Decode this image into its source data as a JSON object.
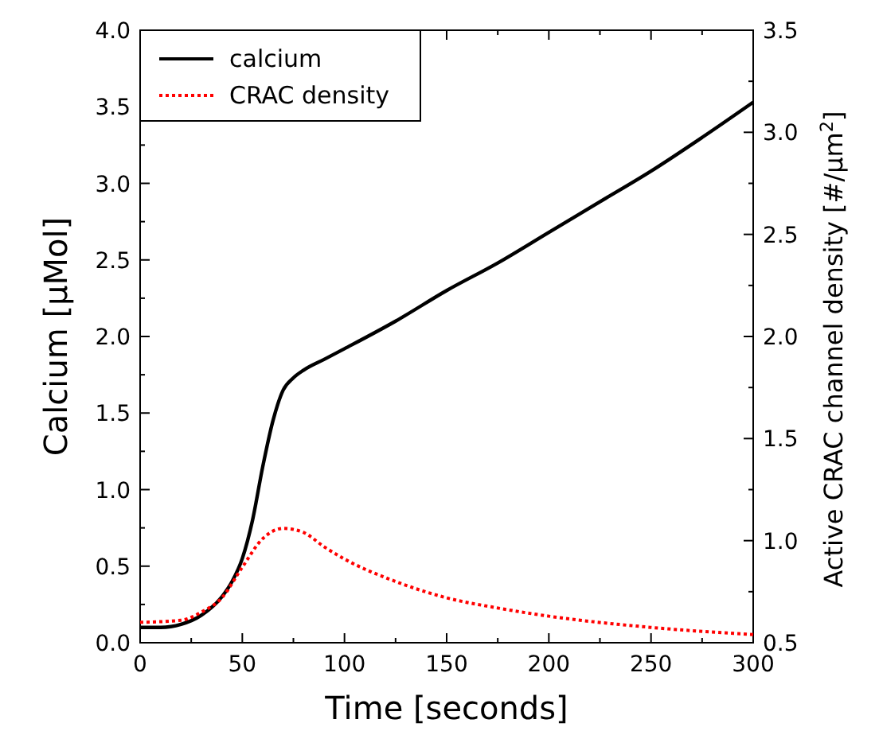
{
  "chart_data": {
    "type": "line",
    "xlabel": "Time [seconds]",
    "ylabel": "Calcium [μMol]",
    "y2label": "Active CRAC channel density [#/μm$^{2}$]",
    "xlim": [
      0,
      300
    ],
    "ylim": [
      0,
      4
    ],
    "y2lim": [
      0.5,
      3.5
    ],
    "xticks": [
      0,
      {
        "value": 25,
        "label": null
      },
      50,
      {
        "value": 75,
        "label": null
      },
      100,
      {
        "value": 125,
        "label": null
      },
      150,
      {
        "value": 175,
        "label": null
      },
      200,
      {
        "value": 225,
        "label": null
      },
      250,
      {
        "value": 275,
        "label": null
      },
      300
    ],
    "yticks": [
      {
        "value": 0,
        "label": "0.0"
      },
      {
        "value": 0.25,
        "label": null
      },
      0.5,
      {
        "value": 0.75,
        "label": null
      },
      {
        "value": 1,
        "label": "1.0"
      },
      {
        "value": 1.25,
        "label": null
      },
      1.5,
      {
        "value": 1.75,
        "label": null
      },
      {
        "value": 2,
        "label": "2.0"
      },
      {
        "value": 2.25,
        "label": null
      },
      2.5,
      {
        "value": 2.75,
        "label": null
      },
      {
        "value": 3,
        "label": "3.0"
      },
      {
        "value": 3.25,
        "label": null
      },
      3.5,
      {
        "value": 3.75,
        "label": null
      },
      {
        "value": 4,
        "label": "4.0"
      }
    ],
    "y2ticks": [
      0.5,
      {
        "value": 0.75,
        "label": null
      },
      {
        "value": 1,
        "label": "1.0"
      },
      {
        "value": 1.25,
        "label": null
      },
      1.5,
      {
        "value": 1.75,
        "label": null
      },
      {
        "value": 2,
        "label": "2.0"
      },
      {
        "value": 2.25,
        "label": null
      },
      2.5,
      {
        "value": 2.75,
        "label": null
      },
      {
        "value": 3,
        "label": "3.0"
      },
      {
        "value": 3.25,
        "label": null
      },
      3.5
    ],
    "legend": "top left",
    "grid": false,
    "series": [
      {
        "name": "calcium",
        "color": "#000000",
        "line_style": "solid",
        "x": [
          0,
          10,
          20,
          30,
          40,
          45,
          50,
          55,
          60,
          65,
          70,
          75,
          80,
          90,
          100,
          125,
          150,
          175,
          200,
          225,
          250,
          275,
          300
        ],
        "values": [
          0.1,
          0.1,
          0.12,
          0.18,
          0.3,
          0.4,
          0.55,
          0.8,
          1.15,
          1.45,
          1.65,
          1.73,
          1.78,
          1.85,
          1.92,
          2.1,
          2.3,
          2.48,
          2.68,
          2.88,
          3.08,
          3.3,
          3.53
        ]
      },
      {
        "name": "CRAC density",
        "color": "#ff0000",
        "line_style": "dotted",
        "axis": "y2",
        "x": [
          0,
          20,
          30,
          40,
          50,
          60,
          70,
          80,
          90,
          100,
          125,
          150,
          175,
          200,
          250,
          300
        ],
        "values": [
          0.6,
          0.61,
          0.65,
          0.72,
          0.87,
          1.01,
          1.06,
          1.04,
          0.97,
          0.91,
          0.8,
          0.72,
          0.67,
          0.63,
          0.575,
          0.54
        ]
      }
    ]
  }
}
